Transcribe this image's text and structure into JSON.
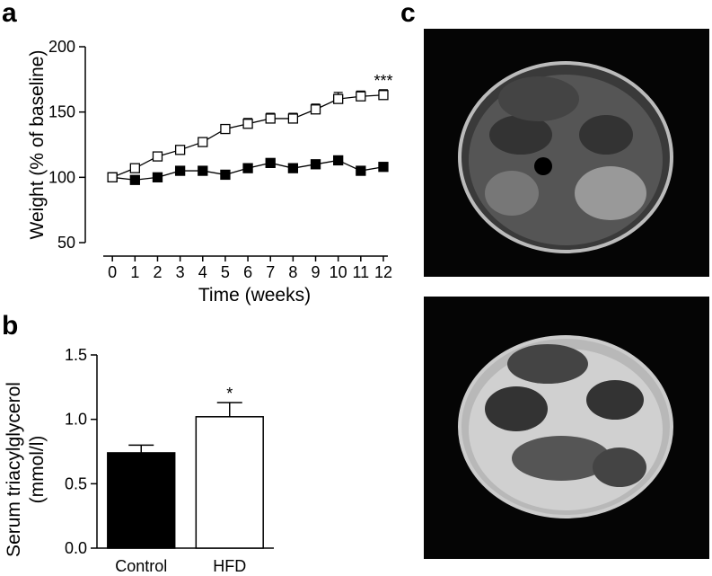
{
  "panel_labels": [
    "a",
    "b",
    "c"
  ],
  "chart_data": [
    {
      "type": "line",
      "x_label": "Time (weeks)",
      "y_label": "Weight (% of baseline)",
      "x": [
        0,
        1,
        2,
        3,
        4,
        5,
        6,
        7,
        8,
        9,
        10,
        11,
        12
      ],
      "xlim": [
        -1.2,
        12.2
      ],
      "xticks": [
        0,
        1,
        2,
        3,
        4,
        5,
        6,
        7,
        8,
        9,
        10,
        11,
        12
      ],
      "ylim": [
        50,
        200
      ],
      "yticks": [
        50,
        100,
        150,
        200
      ],
      "annotation": "***",
      "series": [
        {
          "color": "#000000",
          "marker": "filled-square",
          "values": [
            100,
            98,
            100,
            105,
            105,
            102,
            107,
            111,
            107,
            110,
            113,
            105,
            108
          ],
          "errors": [
            1,
            1,
            1,
            2,
            2,
            2,
            2,
            2,
            2,
            2,
            3,
            2,
            2
          ]
        },
        {
          "color": "#000000",
          "marker": "open-square",
          "values": [
            100,
            107,
            116,
            121,
            127,
            137,
            141,
            145,
            145,
            152,
            160,
            162,
            163
          ],
          "errors": [
            1,
            2,
            2,
            2,
            2,
            3,
            4,
            4,
            4,
            4,
            5,
            4,
            4
          ]
        }
      ]
    },
    {
      "type": "bar",
      "y_label": [
        "Serum triacylglycerol",
        "(mmol/l)"
      ],
      "categories": [
        "Control",
        "HFD"
      ],
      "values": [
        0.74,
        1.02
      ],
      "errors": [
        0.06,
        0.11
      ],
      "colors": [
        "#000000",
        "#ffffff"
      ],
      "ylim": [
        0,
        1.5
      ],
      "yticks": [
        {
          "value": 0,
          "label": "0.0"
        },
        0.5,
        {
          "value": 1,
          "label": "1.0"
        },
        1.5
      ],
      "annotation": "*"
    }
  ]
}
